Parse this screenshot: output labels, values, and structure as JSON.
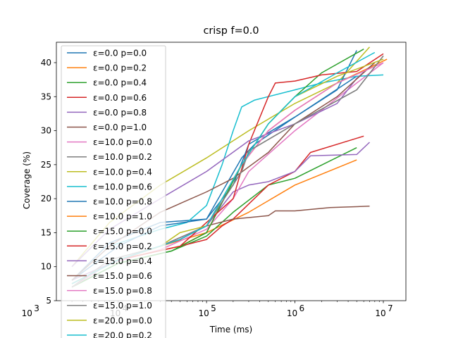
{
  "chart_data": {
    "type": "line",
    "title": "crisp f=0.0",
    "xlabel": "Time (ms)",
    "ylabel": "Coverage (%)",
    "xscale": "log",
    "xlim": [
      2000,
      18000000
    ],
    "ylim": [
      5,
      43
    ],
    "x_ticks": [
      {
        "value": 1000,
        "label": "10",
        "exp": "3"
      },
      {
        "value": 10000,
        "label": "10",
        "exp": "4"
      },
      {
        "value": 100000,
        "label": "10",
        "exp": "5"
      },
      {
        "value": 1000000,
        "label": "10",
        "exp": "6"
      },
      {
        "value": 10000000,
        "label": "10",
        "exp": "7"
      }
    ],
    "y_ticks": [
      5,
      10,
      15,
      20,
      25,
      30,
      35,
      40
    ],
    "grid": false,
    "legend_position": "upper-left",
    "series": [
      {
        "name": "ε=0.0 p=0.0",
        "color": "#1f77b4",
        "points": [
          [
            3000,
            8
          ],
          [
            8000,
            13.5
          ],
          [
            30000,
            16.5
          ],
          [
            100000,
            17
          ],
          [
            200000,
            22
          ],
          [
            300000,
            28
          ],
          [
            1000000,
            32
          ],
          [
            5000000,
            38
          ]
        ]
      },
      {
        "name": "ε=0.0 p=0.2",
        "color": "#ff7f0e",
        "points": [
          [
            3000,
            7.5
          ],
          [
            10000,
            11
          ],
          [
            30000,
            13
          ],
          [
            100000,
            15
          ],
          [
            300000,
            18
          ],
          [
            1000000,
            22
          ],
          [
            5000000,
            25.7
          ]
        ]
      },
      {
        "name": "ε=0.0 p=0.4",
        "color": "#2ca02c",
        "points": [
          [
            3000,
            7
          ],
          [
            10000,
            10.5
          ],
          [
            40000,
            12.3
          ],
          [
            100000,
            14.5
          ],
          [
            200000,
            18
          ],
          [
            500000,
            22
          ],
          [
            1000000,
            23
          ],
          [
            5000000,
            27.5
          ]
        ]
      },
      {
        "name": "ε=0.0 p=0.6",
        "color": "#d62728",
        "points": [
          [
            3000,
            7.5
          ],
          [
            10000,
            11
          ],
          [
            50000,
            13
          ],
          [
            100000,
            14
          ],
          [
            150000,
            16
          ],
          [
            200000,
            17
          ],
          [
            500000,
            22
          ],
          [
            1000000,
            24
          ],
          [
            1500000,
            26.8
          ],
          [
            6000000,
            29.2
          ]
        ]
      },
      {
        "name": "ε=0.0 p=0.8",
        "color": "#9467bd",
        "points": [
          [
            3000,
            8
          ],
          [
            10000,
            11
          ],
          [
            50000,
            14
          ],
          [
            100000,
            16
          ],
          [
            200000,
            21
          ],
          [
            300000,
            22
          ],
          [
            500000,
            22.5
          ],
          [
            1000000,
            24
          ],
          [
            1500000,
            26.3
          ],
          [
            5000000,
            26.5
          ],
          [
            7000000,
            28.3
          ]
        ]
      },
      {
        "name": "ε=0.0 p=1.0",
        "color": "#8c564b",
        "points": [
          [
            3000,
            7.5
          ],
          [
            10000,
            11
          ],
          [
            50000,
            14
          ],
          [
            100000,
            16
          ],
          [
            200000,
            17
          ],
          [
            500000,
            17.5
          ],
          [
            600000,
            18.2
          ],
          [
            1000000,
            18.2
          ],
          [
            2500000,
            18.7
          ],
          [
            7000000,
            18.9
          ]
        ]
      },
      {
        "name": "ε=10.0 p=0.0",
        "color": "#e377c2",
        "points": [
          [
            3000,
            7
          ],
          [
            8000,
            10.5
          ],
          [
            30000,
            12.5
          ],
          [
            100000,
            15.5
          ],
          [
            200000,
            20
          ],
          [
            300000,
            24
          ],
          [
            1000000,
            30
          ],
          [
            5000000,
            37
          ],
          [
            10000000,
            40
          ]
        ]
      },
      {
        "name": "ε=10.0 p=0.2",
        "color": "#7f7f7f",
        "points": [
          [
            3000,
            7
          ],
          [
            8000,
            10.5
          ],
          [
            30000,
            13
          ],
          [
            100000,
            16
          ],
          [
            250000,
            24
          ],
          [
            300000,
            27
          ],
          [
            1000000,
            31
          ],
          [
            5000000,
            36
          ],
          [
            10000000,
            41
          ]
        ]
      },
      {
        "name": "ε=10.0 p=0.4",
        "color": "#bcbd22",
        "points": [
          [
            3000,
            10
          ],
          [
            8000,
            16.5
          ],
          [
            30000,
            22
          ],
          [
            100000,
            26
          ],
          [
            300000,
            30
          ],
          [
            1000000,
            34
          ],
          [
            3000000,
            37
          ],
          [
            7000000,
            42.3
          ]
        ]
      },
      {
        "name": "ε=10.0 p=0.6",
        "color": "#17becf",
        "points": [
          [
            3000,
            8
          ],
          [
            8000,
            13
          ],
          [
            30000,
            15.5
          ],
          [
            60000,
            16.5
          ],
          [
            100000,
            19
          ],
          [
            150000,
            25
          ],
          [
            200000,
            30
          ],
          [
            250000,
            33.5
          ],
          [
            350000,
            34.5
          ],
          [
            1000000,
            36
          ],
          [
            2000000,
            37
          ],
          [
            5000000,
            38
          ],
          [
            10000000,
            38.2
          ]
        ]
      },
      {
        "name": "ε=10.0 p=0.8",
        "color": "#1f77b4",
        "points": [
          [
            3000,
            8
          ],
          [
            10000,
            13
          ],
          [
            30000,
            16
          ],
          [
            100000,
            17
          ],
          [
            250000,
            26
          ],
          [
            350000,
            28
          ],
          [
            1000000,
            32
          ],
          [
            3000000,
            36
          ],
          [
            5000000,
            41.8
          ]
        ]
      },
      {
        "name": "ε=10.0 p=1.0",
        "color": "#ff7f0e",
        "points": [
          [
            3000,
            7.5
          ],
          [
            10000,
            11
          ],
          [
            50000,
            13
          ],
          [
            100000,
            15
          ],
          [
            250000,
            25
          ],
          [
            500000,
            30
          ],
          [
            1000000,
            33
          ],
          [
            3000000,
            37
          ],
          [
            11000000,
            40.5
          ]
        ]
      },
      {
        "name": "ε=15.0 p=0.0",
        "color": "#2ca02c",
        "points": [
          [
            3000,
            7
          ],
          [
            10000,
            10.5
          ],
          [
            40000,
            12.3
          ],
          [
            100000,
            15
          ],
          [
            250000,
            25
          ],
          [
            500000,
            31
          ],
          [
            1000000,
            35
          ],
          [
            2000000,
            38.5
          ],
          [
            6000000,
            42
          ]
        ]
      },
      {
        "name": "ε=15.0 p=0.2",
        "color": "#d62728",
        "points": [
          [
            3000,
            7.5
          ],
          [
            10000,
            11
          ],
          [
            50000,
            13
          ],
          [
            200000,
            20
          ],
          [
            300000,
            28
          ],
          [
            500000,
            35
          ],
          [
            600000,
            37
          ],
          [
            1000000,
            37.3
          ],
          [
            2000000,
            38.2
          ],
          [
            5000000,
            38.7
          ],
          [
            10000000,
            41.3
          ]
        ]
      },
      {
        "name": "ε=15.0 p=0.4",
        "color": "#9467bd",
        "points": [
          [
            3000,
            10
          ],
          [
            8000,
            15.5
          ],
          [
            30000,
            20
          ],
          [
            100000,
            24
          ],
          [
            300000,
            28.5
          ],
          [
            1000000,
            31
          ],
          [
            3000000,
            34
          ],
          [
            5000000,
            37.7
          ],
          [
            8000000,
            40
          ]
        ]
      },
      {
        "name": "ε=15.0 p=0.6",
        "color": "#8c564b",
        "points": [
          [
            3000,
            8
          ],
          [
            8000,
            13
          ],
          [
            30000,
            18
          ],
          [
            100000,
            21
          ],
          [
            200000,
            23
          ],
          [
            500000,
            26.8
          ],
          [
            1000000,
            31
          ],
          [
            3000000,
            35
          ],
          [
            8000000,
            40
          ]
        ]
      },
      {
        "name": "ε=15.0 p=0.8",
        "color": "#e377c2",
        "points": [
          [
            3000,
            7
          ],
          [
            8000,
            10.5
          ],
          [
            30000,
            13
          ],
          [
            100000,
            16
          ],
          [
            250000,
            25
          ],
          [
            500000,
            30
          ],
          [
            1000000,
            33
          ],
          [
            3000000,
            37
          ],
          [
            10000000,
            40
          ]
        ]
      },
      {
        "name": "ε=15.0 p=1.0",
        "color": "#7f7f7f",
        "points": [
          [
            3000,
            7
          ],
          [
            8000,
            11
          ],
          [
            30000,
            13
          ],
          [
            100000,
            16
          ],
          [
            250000,
            24
          ],
          [
            300000,
            27
          ],
          [
            1000000,
            31
          ],
          [
            5000000,
            36
          ],
          [
            10000000,
            41
          ]
        ]
      },
      {
        "name": "ε=20.0 p=0.0",
        "color": "#bcbd22",
        "points": [
          [
            3000,
            7.5
          ],
          [
            10000,
            11
          ],
          [
            30000,
            13
          ],
          [
            50000,
            15
          ],
          [
            100000,
            16
          ],
          [
            250000,
            25
          ],
          [
            500000,
            31
          ],
          [
            1000000,
            35
          ],
          [
            3000000,
            38
          ],
          [
            10000000,
            40.5
          ]
        ]
      },
      {
        "name": "ε=20.0 p=0.2",
        "color": "#17becf",
        "points": [
          [
            3000,
            7.5
          ],
          [
            10000,
            11
          ],
          [
            50000,
            14
          ],
          [
            100000,
            16
          ],
          [
            250000,
            25
          ],
          [
            500000,
            31
          ],
          [
            1000000,
            35
          ],
          [
            3000000,
            38.5
          ],
          [
            8000000,
            41.5
          ]
        ]
      }
    ]
  }
}
